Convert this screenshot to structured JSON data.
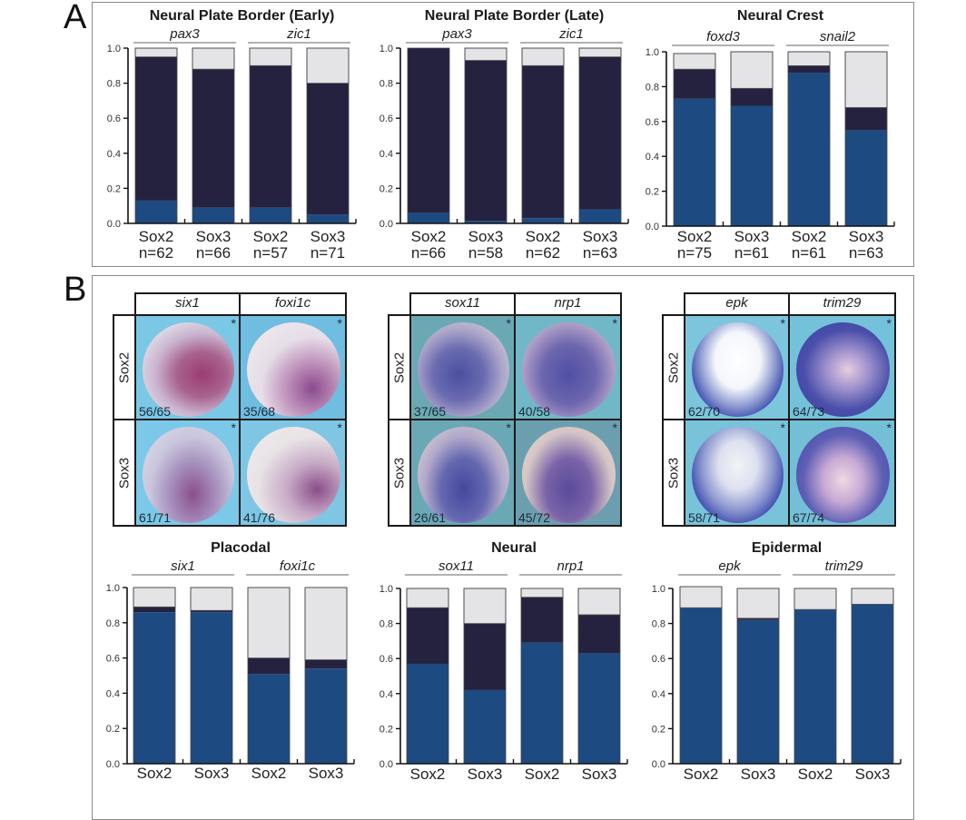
{
  "figure": {
    "panel_a_label": "A",
    "panel_b_label": "B",
    "colors": {
      "blue": "#1e4a82",
      "navy": "#25223f",
      "light": "#e4e4e6",
      "embryo_bg_light": "#7cc4e0",
      "embryo_bg_teal": "#6aaab8"
    }
  },
  "chart_data": [
    {
      "id": "npb_early",
      "type": "bar",
      "stacked": true,
      "title": "Neural Plate Border (Early)",
      "groups": [
        "pax3",
        "zic1"
      ],
      "categories": [
        "Sox2",
        "Sox3",
        "Sox2",
        "Sox3"
      ],
      "n_labels": [
        "n=62",
        "n=66",
        "n=57",
        "n=71"
      ],
      "ylim": [
        0,
        1.0
      ],
      "yticks": [
        "0.0",
        "0.2",
        "0.4",
        "0.6",
        "0.8",
        "1.0"
      ],
      "series": [
        {
          "name": "blue",
          "values": [
            0.13,
            0.09,
            0.09,
            0.05
          ]
        },
        {
          "name": "navy",
          "values": [
            0.82,
            0.79,
            0.81,
            0.75
          ]
        },
        {
          "name": "light",
          "values": [
            0.05,
            0.12,
            0.1,
            0.2
          ]
        }
      ]
    },
    {
      "id": "npb_late",
      "type": "bar",
      "stacked": true,
      "title": "Neural Plate Border (Late)",
      "groups": [
        "pax3",
        "zic1"
      ],
      "categories": [
        "Sox2",
        "Sox3",
        "Sox2",
        "Sox3"
      ],
      "n_labels": [
        "n=66",
        "n=58",
        "n=62",
        "n=63"
      ],
      "ylim": [
        0,
        1.0
      ],
      "yticks": [
        "0.0",
        "0.2",
        "0.4",
        "0.6",
        "0.8",
        "1.0"
      ],
      "series": [
        {
          "name": "blue",
          "values": [
            0.06,
            0.015,
            0.03,
            0.08
          ]
        },
        {
          "name": "navy",
          "values": [
            0.94,
            0.915,
            0.87,
            0.87
          ]
        },
        {
          "name": "light",
          "values": [
            0.0,
            0.07,
            0.1,
            0.05
          ]
        }
      ]
    },
    {
      "id": "neural_crest",
      "type": "bar",
      "stacked": true,
      "title": "Neural Crest",
      "groups": [
        "foxd3",
        "snail2"
      ],
      "categories": [
        "Sox2",
        "Sox3",
        "Sox2",
        "Sox3"
      ],
      "n_labels": [
        "n=75",
        "n=61",
        "n=61",
        "n=63"
      ],
      "ylim": [
        0,
        1.0
      ],
      "yticks": [
        "0.0",
        "0.2",
        "0.4",
        "0.6",
        "0.8",
        "1.0"
      ],
      "series": [
        {
          "name": "blue",
          "values": [
            0.73,
            0.69,
            0.88,
            0.55
          ]
        },
        {
          "name": "navy",
          "values": [
            0.17,
            0.1,
            0.04,
            0.13
          ]
        },
        {
          "name": "light",
          "values": [
            0.09,
            0.21,
            0.08,
            0.32
          ]
        }
      ]
    },
    {
      "id": "placodal",
      "type": "bar",
      "stacked": true,
      "title": "Placodal",
      "groups": [
        "six1",
        "foxi1c"
      ],
      "categories": [
        "Sox2",
        "Sox3",
        "Sox2",
        "Sox3"
      ],
      "n_labels": [],
      "ylim": [
        0,
        1.0
      ],
      "yticks": [
        "0.0",
        "0.2",
        "0.4",
        "0.6",
        "0.8",
        "1.0"
      ],
      "series": [
        {
          "name": "blue",
          "values": [
            0.86,
            0.86,
            0.51,
            0.54
          ]
        },
        {
          "name": "navy",
          "values": [
            0.03,
            0.01,
            0.09,
            0.05
          ]
        },
        {
          "name": "light",
          "values": [
            0.11,
            0.13,
            0.4,
            0.41
          ]
        }
      ]
    },
    {
      "id": "neural",
      "type": "bar",
      "stacked": true,
      "title": "Neural",
      "groups": [
        "sox11",
        "nrp1"
      ],
      "categories": [
        "Sox2",
        "Sox3",
        "Sox2",
        "Sox3"
      ],
      "n_labels": [],
      "ylim": [
        0,
        1.0
      ],
      "yticks": [
        "0.0",
        "0.2",
        "0.4",
        "0.6",
        "0.8",
        "1.0"
      ],
      "series": [
        {
          "name": "blue",
          "values": [
            0.57,
            0.42,
            0.69,
            0.63
          ]
        },
        {
          "name": "navy",
          "values": [
            0.32,
            0.38,
            0.26,
            0.22
          ]
        },
        {
          "name": "light",
          "values": [
            0.11,
            0.2,
            0.05,
            0.15
          ]
        }
      ]
    },
    {
      "id": "epidermal",
      "type": "bar",
      "stacked": true,
      "title": "Epidermal",
      "groups": [
        "epk",
        "trim29"
      ],
      "categories": [
        "Sox2",
        "Sox3",
        "Sox2",
        "Sox3"
      ],
      "n_labels": [],
      "ylim": [
        0,
        1.0
      ],
      "yticks": [
        "0.0",
        "0.2",
        "0.4",
        "0.6",
        "0.8",
        "1.0"
      ],
      "series": [
        {
          "name": "blue",
          "values": [
            0.89,
            0.82,
            0.88,
            0.91
          ]
        },
        {
          "name": "navy",
          "values": [
            0.0,
            0.01,
            0.0,
            0.0
          ]
        },
        {
          "name": "light",
          "values": [
            0.12,
            0.17,
            0.12,
            0.09
          ]
        }
      ]
    }
  ],
  "image_grids": [
    {
      "id": "placodal_grid",
      "columns": [
        "six1",
        "foxi1c"
      ],
      "rows": [
        "Sox2",
        "Sox3"
      ],
      "counts": [
        [
          "56/65",
          "35/68"
        ],
        [
          "61/71",
          "41/76"
        ]
      ],
      "marker": "*"
    },
    {
      "id": "neural_grid",
      "columns": [
        "sox11",
        "nrp1"
      ],
      "rows": [
        "Sox2",
        "Sox3"
      ],
      "counts": [
        [
          "37/65",
          "40/58"
        ],
        [
          "26/61",
          "45/72"
        ]
      ],
      "marker": "*"
    },
    {
      "id": "epidermal_grid",
      "columns": [
        "epk",
        "trim29"
      ],
      "rows": [
        "Sox2",
        "Sox3"
      ],
      "counts": [
        [
          "62/70",
          "64/73"
        ],
        [
          "58/71",
          "67/74"
        ]
      ],
      "marker": "*"
    }
  ]
}
